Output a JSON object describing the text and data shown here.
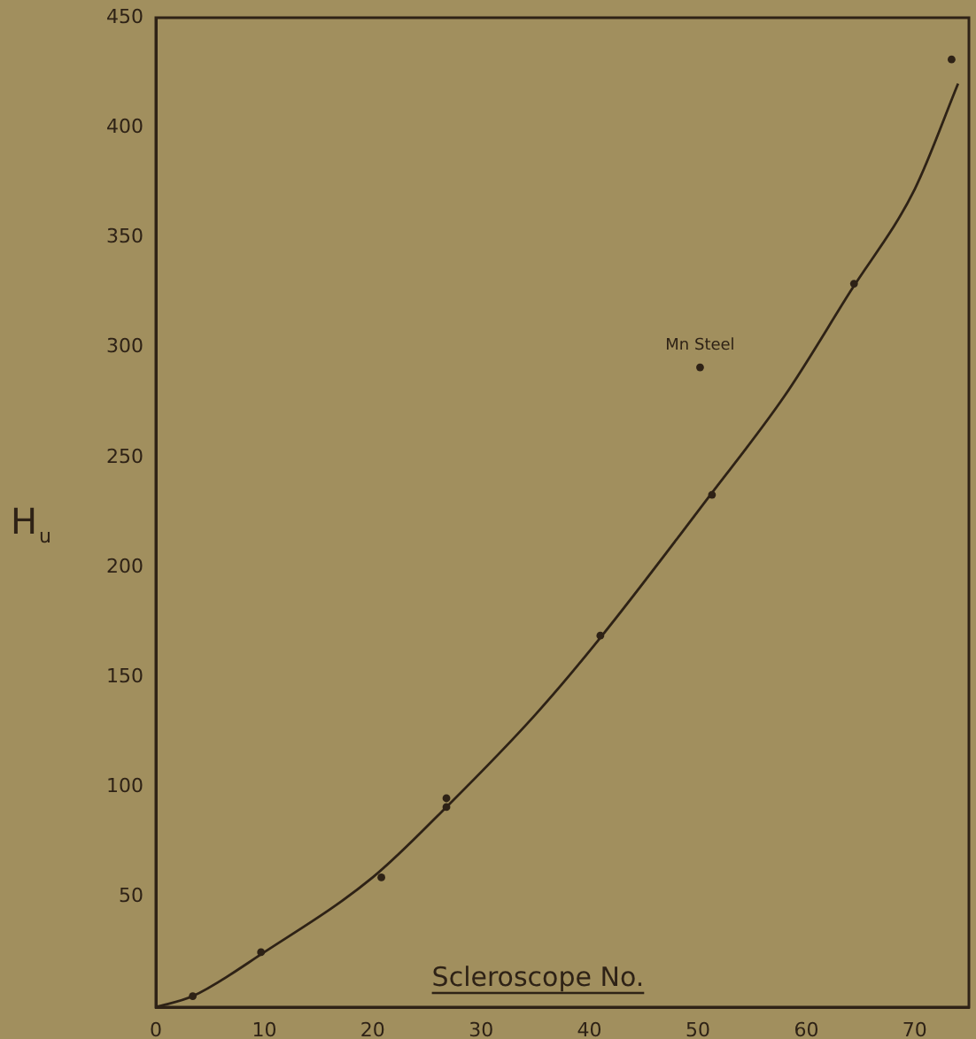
{
  "chart_data": {
    "type": "scatter",
    "xlabel": "Scleroscope No.",
    "ylabel": "H$_{u}$",
    "series": [
      {
        "color": "#2e2216",
        "x": [
          3.4,
          9.7,
          20.8,
          26.8,
          26.8,
          41,
          51.3,
          50.2,
          64.4,
          73.4
        ],
        "values": [
          5,
          25,
          59,
          95,
          91,
          169,
          233,
          291,
          329,
          431
        ]
      },
      {
        "type": "line",
        "color": "#2e2216",
        "x": [
          0,
          3.4,
          10,
          20,
          27,
          35,
          41,
          51,
          58,
          64,
          70,
          74
        ],
        "values": [
          0,
          5,
          25,
          59,
          92,
          133,
          168,
          232,
          278,
          325,
          372,
          420
        ],
        "marker": "none"
      }
    ],
    "annotations": [
      {
        "text": "Mn Steel",
        "x": 50.2,
        "y": 291
      }
    ],
    "xlim": [
      0,
      75
    ],
    "xticks": [
      0,
      10,
      20,
      30,
      40,
      50,
      60,
      70
    ],
    "ylim": [
      0,
      450
    ],
    "yticks": [
      50,
      100,
      150,
      200,
      250,
      300,
      350,
      400,
      450
    ],
    "marker": "circle",
    "grid": false,
    "legend": false
  }
}
